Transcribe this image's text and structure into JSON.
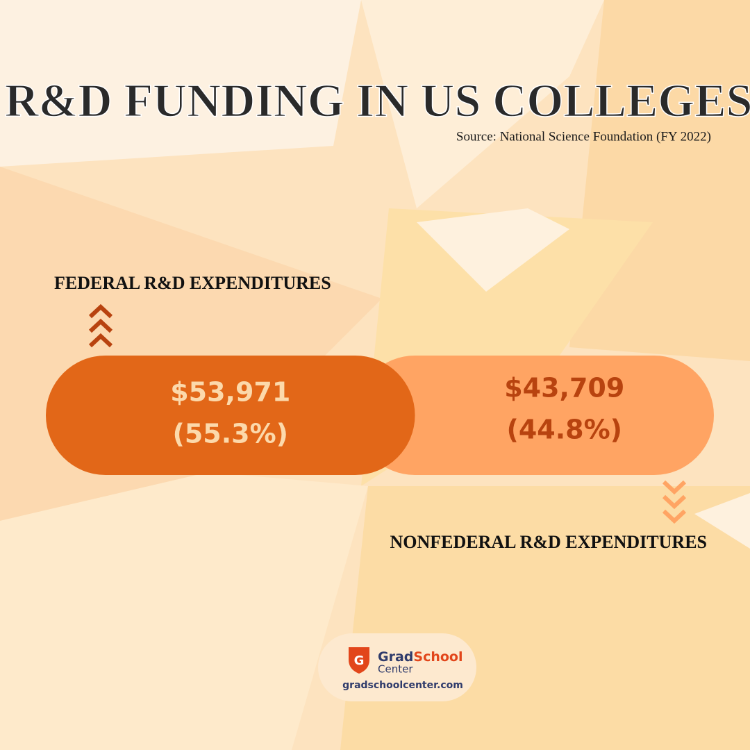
{
  "chart_data": {
    "type": "split-bar",
    "title": "R&D FUNDING IN US COLLEGES",
    "subtitle": "Source: National Science Foundation (FY 2022)",
    "series": [
      {
        "name": "FEDERAL R&D EXPENDITURES",
        "color": "#e26718",
        "text_color": "#fcd9ab",
        "values": [
          53971
        ],
        "value_labels": [
          "$53,971"
        ],
        "shares": [
          55.3
        ],
        "share_labels": [
          "(55.3%)"
        ]
      },
      {
        "name": "NONFEDERAL R&D EXPENDITURES",
        "color": "#ffa463",
        "text_color": "#b8430f",
        "values": [
          43709
        ],
        "value_labels": [
          "$43,709"
        ],
        "shares": [
          44.8
        ],
        "share_labels": [
          "(44.8%)"
        ]
      }
    ]
  },
  "brand": {
    "name_1": "Grad",
    "name_2": "School",
    "name_3": "Center",
    "url": "gradschoolcenter.com"
  }
}
